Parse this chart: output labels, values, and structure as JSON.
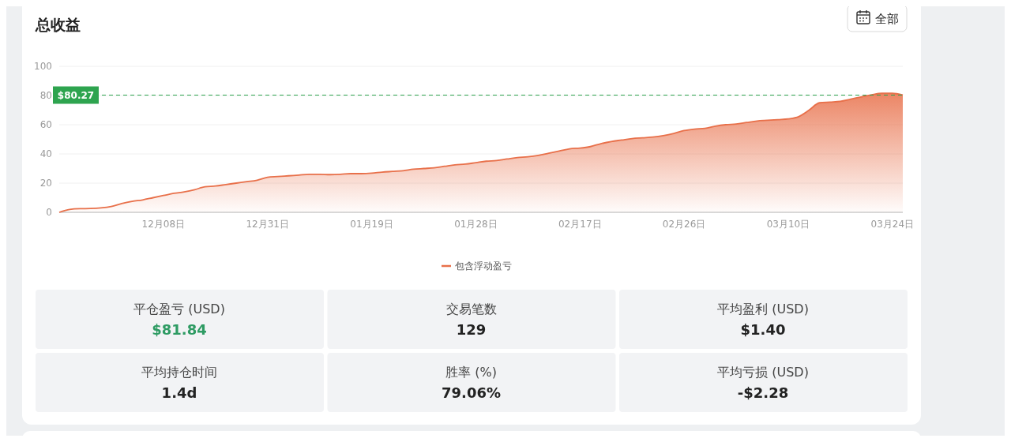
{
  "chart_data": [
    {
      "type": "area",
      "title": "总收益",
      "annotations": [
        "全部"
      ],
      "categories": [
        null,
        null,
        null,
        null,
        null,
        null,
        null,
        null,
        null,
        null,
        "12月08日",
        null,
        null,
        null,
        null,
        null,
        null,
        null,
        null,
        null,
        "12月31日",
        null,
        null,
        null,
        null,
        null,
        null,
        null,
        null,
        null,
        "01月19日",
        null,
        null,
        null,
        null,
        null,
        null,
        null,
        null,
        null,
        "01月28日",
        null,
        null,
        null,
        null,
        null,
        null,
        null,
        null,
        null,
        "02月17日",
        null,
        null,
        null,
        null,
        null,
        null,
        null,
        null,
        null,
        "02月26日",
        null,
        null,
        null,
        null,
        null,
        null,
        null,
        null,
        null,
        "03月10日",
        null,
        null,
        null,
        null,
        null,
        null,
        null,
        null,
        null,
        "03月24日",
        null
      ],
      "series": [
        {
          "name": "包含浮动盈亏",
          "color": "#e8704a",
          "values": [
            0,
            2,
            2.5,
            2.6,
            3,
            4,
            6,
            7.5,
            8.5,
            10,
            11.5,
            13,
            14,
            15.5,
            17.5,
            18,
            19,
            20,
            21,
            22,
            24,
            24.5,
            25,
            25.5,
            26,
            26,
            25.8,
            26,
            26.5,
            26.5,
            26.8,
            27.5,
            28,
            28.5,
            29.5,
            30,
            30.5,
            31.5,
            32.5,
            33,
            34,
            35,
            35.5,
            36.5,
            37.5,
            38,
            39,
            40.5,
            42,
            43.5,
            44,
            45,
            47,
            48.5,
            49.5,
            50.5,
            51,
            51.5,
            52.5,
            54,
            56,
            57,
            57.5,
            59,
            60,
            60.5,
            61.5,
            62.5,
            63,
            63.5,
            64,
            65.5,
            70,
            75,
            75.5,
            76,
            77.5,
            79,
            80.5,
            81.5,
            81.5,
            80.3
          ]
        }
      ],
      "ylim": [
        0,
        100
      ],
      "yticks": [
        0,
        20,
        40,
        60,
        80,
        100
      ],
      "grid": "y",
      "legend": "bottom",
      "ref_lines": [
        {
          "axis": "y",
          "value": 80.27,
          "label": "$80.27",
          "color": "#2ea44f",
          "line_style": "dashed"
        }
      ]
    },
    {
      "type": "other",
      "annotations": [
        "平仓盈亏 (USD)",
        "$81.84",
        "交易笔数",
        "129",
        "平均盈利 (USD)",
        "$1.40",
        "平均持仓时间",
        "1.4d",
        "胜率 (%)",
        "79.06%",
        "平均亏损 (USD)",
        "-$2.28"
      ]
    }
  ]
}
